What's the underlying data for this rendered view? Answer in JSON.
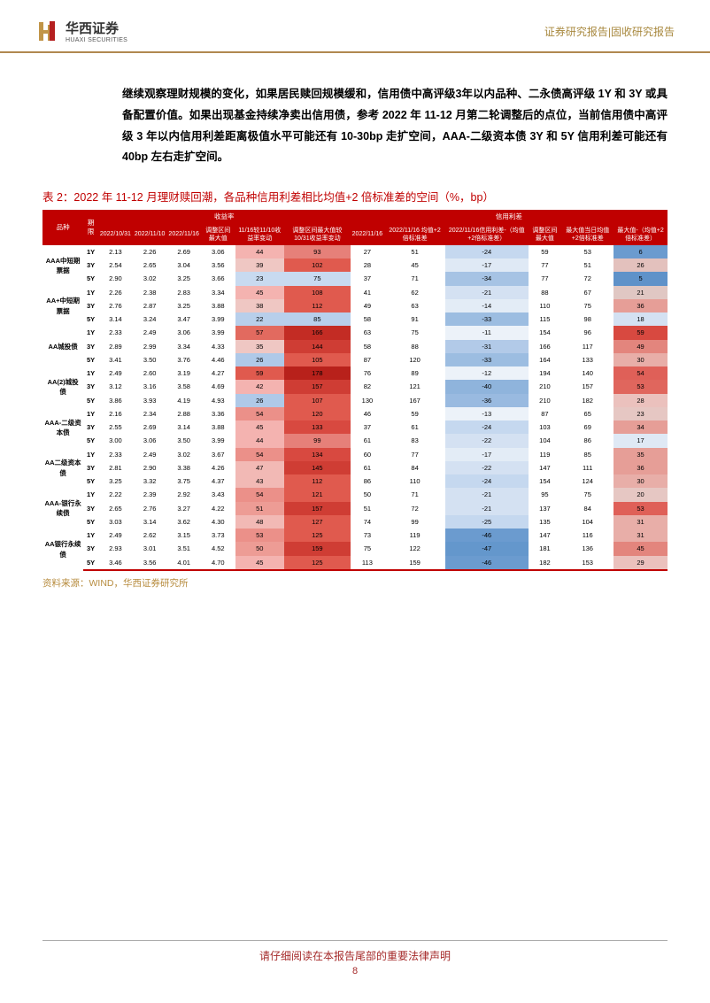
{
  "header": {
    "logo_cn": "华西证券",
    "logo_en": "HUAXI SECURITIES",
    "right_text": "证券研究报告|固收研究报告"
  },
  "paragraph": "继续观察理财规模的变化，如果居民赎回规模缓和，信用债中高评级3年以内品种、二永债高评级 1Y 和 3Y 或具备配置价值。如果出现基金持续净卖出信用债，参考 2022 年 11-12 月第二轮调整后的点位，当前信用债中高评级 3 年以内信用利差距离极值水平可能还有 10-30bp 走扩空间，AAA-二级资本债 3Y 和 5Y 信用利差可能还有 40bp 左右走扩空间。",
  "table_title": "表 2：2022 年 11-12 月理财赎回潮，各品种信用利差相比均值+2 倍标准差的空间（%，bp）",
  "headers": {
    "group_yield": "收益率",
    "group_spread": "信用利差",
    "col0": "品种",
    "col1": "期限",
    "col2": "2022/10/31",
    "col3": "2022/11/10",
    "col4": "2022/11/16",
    "col5": "调整区间最大值",
    "col6": "11/16较11/10收益率变动",
    "col7": "调整区间最大值较10/31收益率变动",
    "col8": "2022/11/16",
    "col9": "2022/11/16 均值+2倍标准差",
    "col10": "2022/11/16信用利差-（均值+2倍标准差）",
    "col11": "调整区间最大值",
    "col12": "最大值当日均值+2倍标准差",
    "col13": "最大值-（均值+2倍标准差）"
  },
  "categories": [
    "AAA中短期票据",
    "AA+中短期票据",
    "AA城投债",
    "AA(2)城投债",
    "AAA-二级资本债",
    "AA二级资本债",
    "AAA-银行永续债",
    "AA银行永续债"
  ],
  "terms": [
    "1Y",
    "3Y",
    "5Y"
  ],
  "rows": [
    [
      "2.13",
      "2.26",
      "2.69",
      "3.06",
      "44",
      "93",
      "27",
      "51",
      "-24",
      "59",
      "53",
      "6"
    ],
    [
      "2.54",
      "2.65",
      "3.04",
      "3.56",
      "39",
      "102",
      "28",
      "45",
      "-17",
      "77",
      "51",
      "26"
    ],
    [
      "2.90",
      "3.02",
      "3.25",
      "3.66",
      "23",
      "75",
      "37",
      "71",
      "-34",
      "77",
      "72",
      "5"
    ],
    [
      "2.26",
      "2.38",
      "2.83",
      "3.34",
      "45",
      "108",
      "41",
      "62",
      "-21",
      "88",
      "67",
      "21"
    ],
    [
      "2.76",
      "2.87",
      "3.25",
      "3.88",
      "38",
      "112",
      "49",
      "63",
      "-14",
      "110",
      "75",
      "36"
    ],
    [
      "3.14",
      "3.24",
      "3.47",
      "3.99",
      "22",
      "85",
      "58",
      "91",
      "-33",
      "115",
      "98",
      "18"
    ],
    [
      "2.33",
      "2.49",
      "3.06",
      "3.99",
      "57",
      "166",
      "63",
      "75",
      "-11",
      "154",
      "96",
      "59"
    ],
    [
      "2.89",
      "2.99",
      "3.34",
      "4.33",
      "35",
      "144",
      "58",
      "88",
      "-31",
      "166",
      "117",
      "49"
    ],
    [
      "3.41",
      "3.50",
      "3.76",
      "4.46",
      "26",
      "105",
      "87",
      "120",
      "-33",
      "164",
      "133",
      "30"
    ],
    [
      "2.49",
      "2.60",
      "3.19",
      "4.27",
      "59",
      "178",
      "76",
      "89",
      "-12",
      "194",
      "140",
      "54"
    ],
    [
      "3.12",
      "3.16",
      "3.58",
      "4.69",
      "42",
      "157",
      "82",
      "121",
      "-40",
      "210",
      "157",
      "53"
    ],
    [
      "3.86",
      "3.93",
      "4.19",
      "4.93",
      "26",
      "107",
      "130",
      "167",
      "-36",
      "210",
      "182",
      "28"
    ],
    [
      "2.16",
      "2.34",
      "2.88",
      "3.36",
      "54",
      "120",
      "46",
      "59",
      "-13",
      "87",
      "65",
      "23"
    ],
    [
      "2.55",
      "2.69",
      "3.14",
      "3.88",
      "45",
      "133",
      "37",
      "61",
      "-24",
      "103",
      "69",
      "34"
    ],
    [
      "3.00",
      "3.06",
      "3.50",
      "3.99",
      "44",
      "99",
      "61",
      "83",
      "-22",
      "104",
      "86",
      "17"
    ],
    [
      "2.33",
      "2.49",
      "3.02",
      "3.67",
      "54",
      "134",
      "60",
      "77",
      "-17",
      "119",
      "85",
      "35"
    ],
    [
      "2.81",
      "2.90",
      "3.38",
      "4.26",
      "47",
      "145",
      "61",
      "84",
      "-22",
      "147",
      "111",
      "36"
    ],
    [
      "3.25",
      "3.32",
      "3.75",
      "4.37",
      "43",
      "112",
      "86",
      "110",
      "-24",
      "154",
      "124",
      "30"
    ],
    [
      "2.22",
      "2.39",
      "2.92",
      "3.43",
      "54",
      "121",
      "50",
      "71",
      "-21",
      "95",
      "75",
      "20"
    ],
    [
      "2.65",
      "2.76",
      "3.27",
      "4.22",
      "51",
      "157",
      "51",
      "72",
      "-21",
      "137",
      "84",
      "53"
    ],
    [
      "3.03",
      "3.14",
      "3.62",
      "4.30",
      "48",
      "127",
      "74",
      "99",
      "-25",
      "135",
      "104",
      "31"
    ],
    [
      "2.49",
      "2.62",
      "3.15",
      "3.73",
      "53",
      "125",
      "73",
      "119",
      "-46",
      "147",
      "116",
      "31"
    ],
    [
      "2.93",
      "3.01",
      "3.51",
      "4.52",
      "50",
      "159",
      "75",
      "122",
      "-47",
      "181",
      "136",
      "45"
    ],
    [
      "3.46",
      "3.56",
      "4.01",
      "4.70",
      "45",
      "125",
      "113",
      "159",
      "-46",
      "182",
      "153",
      "29"
    ]
  ],
  "colors": {
    "c6": [
      "#f4b3b0",
      "#efc7c3",
      "#c8daf0",
      "#f4b3b0",
      "#efc7c3",
      "#b8cfeb",
      "#e26a5f",
      "#efc7c3",
      "#afc9e8",
      "#e05a4e",
      "#f4b3b0",
      "#afc9e8",
      "#eb9089",
      "#f4b3b0",
      "#f4b3b0",
      "#eb9089",
      "#f2b9b5",
      "#f2b9b5",
      "#eb9089",
      "#ed9c95",
      "#f2b9b5",
      "#eb9089",
      "#ed9c95",
      "#f4b3b0"
    ],
    "c7": [
      "#e68079",
      "#e05a4e",
      "#c8daf0",
      "#e05a4e",
      "#e05a4e",
      "#b8cfeb",
      "#c32c24",
      "#cf3d34",
      "#e05a4e",
      "#b8211b",
      "#cf3d34",
      "#e05a4e",
      "#e05a4e",
      "#d84940",
      "#e68079",
      "#d84940",
      "#cf3d34",
      "#e05a4e",
      "#e05a4e",
      "#cf3d34",
      "#e05a4e",
      "#e05a4e",
      "#cf3d34",
      "#e05a4e"
    ],
    "c10": [
      "#c5d8ef",
      "#dfe9f5",
      "#a6c3e4",
      "#d4e1f2",
      "#e3ecf6",
      "#9cbde1",
      "#ecf2f9",
      "#b2cae8",
      "#9cbde1",
      "#ecf2f9",
      "#8fb4dc",
      "#99bae0",
      "#ecf2f9",
      "#c5d8ef",
      "#d4e1f2",
      "#e3ecf6",
      "#d4e1f2",
      "#c5d8ef",
      "#d4e1f2",
      "#d4e1f2",
      "#c5d8ef",
      "#6b9bcf",
      "#6497cc",
      "#6b9bcf"
    ],
    "c13": [
      "#6b9bcf",
      "#e3c1bd",
      "#5f92c9",
      "#e0c7c3",
      "#e69e97",
      "#d4e1f2",
      "#d84940",
      "#e3857d",
      "#e8aea8",
      "#df6058",
      "#e0665d",
      "#ebc1bd",
      "#e6c7c3",
      "#e69e97",
      "#dfe9f5",
      "#e69e97",
      "#e69e97",
      "#e8aea8",
      "#e6c7c3",
      "#df6058",
      "#e8aea8",
      "#e8aea8",
      "#e3857d",
      "#ebc1bd"
    ]
  },
  "source": "资料来源：WIND，华西证券研究所",
  "footer_text": "请仔细阅读在本报告尾部的重要法律声明",
  "footer_page": "8"
}
